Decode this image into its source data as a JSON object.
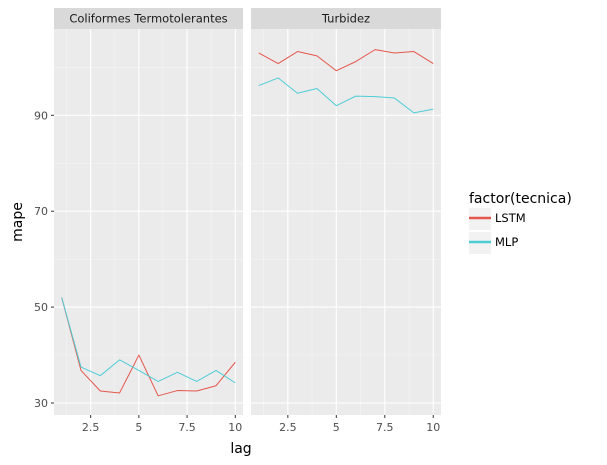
{
  "chart_data": {
    "type": "line",
    "xlabel": "lag",
    "ylabel": "mape",
    "xlim": [
      0.6,
      10.4
    ],
    "ylim": [
      27.5,
      108
    ],
    "x_ticks": [
      2.5,
      5,
      7.5,
      10
    ],
    "x_tick_labels": [
      "2.5",
      "5",
      "7.5",
      "10"
    ],
    "y_ticks": [
      30,
      50,
      70,
      90
    ],
    "y_tick_labels": [
      "30",
      "50",
      "70",
      "90"
    ],
    "grid": true,
    "legend": {
      "title": "factor(tecnica)",
      "position": "right",
      "entries": [
        {
          "name": "LSTM",
          "color": "#e4574c"
        },
        {
          "name": "MLP",
          "color": "#4fcdd6"
        }
      ]
    },
    "panels": [
      {
        "label": "Coliformes Termotolerantes",
        "x": [
          1,
          2,
          3,
          4,
          5,
          6,
          7,
          8,
          9,
          10
        ],
        "series": [
          {
            "name": "LSTM",
            "values": [
              52.0,
              36.8,
              32.5,
              32.1,
              40.0,
              31.5,
              32.6,
              32.5,
              33.6,
              38.5
            ]
          },
          {
            "name": "MLP",
            "values": [
              52.0,
              37.5,
              35.7,
              39.0,
              36.8,
              34.5,
              36.4,
              34.5,
              36.8,
              34.2
            ]
          }
        ]
      },
      {
        "label": "Turbidez",
        "x": [
          1,
          2,
          3,
          4,
          5,
          6,
          7,
          8,
          9,
          10
        ],
        "series": [
          {
            "name": "LSTM",
            "values": [
              103.0,
              100.8,
              103.3,
              102.4,
              99.3,
              101.2,
              103.7,
              103.0,
              103.3,
              100.8
            ]
          },
          {
            "name": "MLP",
            "values": [
              96.2,
              97.8,
              94.6,
              95.6,
              92.0,
              94.0,
              93.9,
              93.6,
              90.5,
              91.3
            ]
          }
        ]
      }
    ]
  }
}
